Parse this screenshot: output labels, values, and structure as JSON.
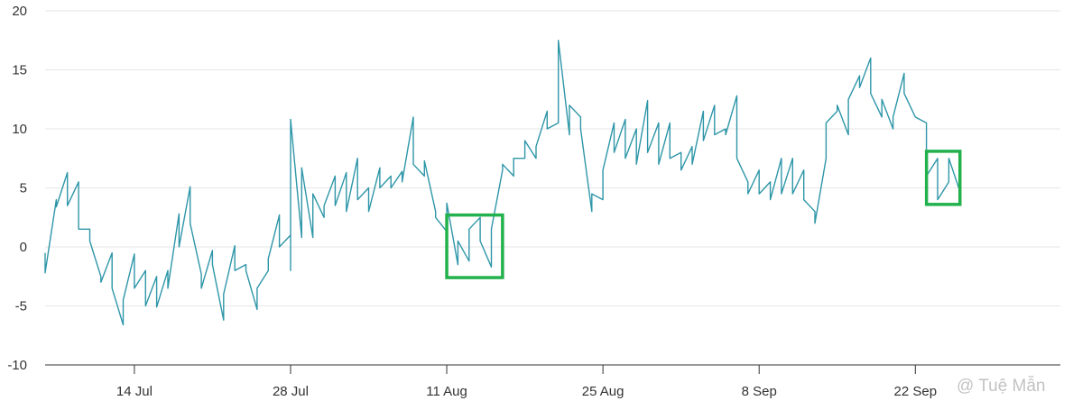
{
  "chart_data": {
    "type": "line",
    "title": "",
    "xlabel": "",
    "ylabel": "",
    "x_type": "date",
    "x_range": [
      "2024-07-06",
      "2024-10-05"
    ],
    "ylim": [
      -10,
      20
    ],
    "y_ticks": [
      {
        "value": 20,
        "label": "20"
      },
      {
        "value": 15,
        "label": "15"
      },
      {
        "value": 10,
        "label": "10"
      },
      {
        "value": 5,
        "label": "5"
      },
      {
        "value": 0,
        "label": "0"
      },
      {
        "value": -5,
        "label": "-5"
      },
      {
        "value": -10,
        "label": "-10"
      }
    ],
    "x_ticks": [
      {
        "date": "2024-07-14",
        "label": "14 Jul"
      },
      {
        "date": "2024-07-28",
        "label": "28 Jul"
      },
      {
        "date": "2024-08-11",
        "label": "11 Aug"
      },
      {
        "date": "2024-08-25",
        "label": "25 Aug"
      },
      {
        "date": "2024-09-08",
        "label": "8 Sep"
      },
      {
        "date": "2024-09-22",
        "label": "22 Sep"
      }
    ],
    "grid": true,
    "legend": "none",
    "series": [
      {
        "color": "#2e96a8",
        "points": [
          [
            "2024-07-06",
            -0.5
          ],
          [
            "2024-07-06",
            -2.2
          ],
          [
            "2024-07-07",
            4.0
          ],
          [
            "2024-07-07",
            3.4
          ],
          [
            "2024-07-08",
            6.3
          ],
          [
            "2024-07-08",
            3.5
          ],
          [
            "2024-07-09",
            5.5
          ],
          [
            "2024-07-09",
            1.5
          ],
          [
            "2024-07-10",
            1.5
          ],
          [
            "2024-07-10",
            0.5
          ],
          [
            "2024-07-11",
            -2.5
          ],
          [
            "2024-07-11",
            -3.0
          ],
          [
            "2024-07-12",
            -0.5
          ],
          [
            "2024-07-12",
            -3.5
          ],
          [
            "2024-07-13",
            -6.6
          ],
          [
            "2024-07-13",
            -4.5
          ],
          [
            "2024-07-14",
            -0.6
          ],
          [
            "2024-07-14",
            -3.5
          ],
          [
            "2024-07-15",
            -2.0
          ],
          [
            "2024-07-15",
            -5.0
          ],
          [
            "2024-07-16",
            -2.5
          ],
          [
            "2024-07-16",
            -5.1
          ],
          [
            "2024-07-17",
            -2.0
          ],
          [
            "2024-07-17",
            -3.5
          ],
          [
            "2024-07-18",
            2.8
          ],
          [
            "2024-07-18",
            0.0
          ],
          [
            "2024-07-19",
            5.1
          ],
          [
            "2024-07-19",
            2.0
          ],
          [
            "2024-07-20",
            -2.3
          ],
          [
            "2024-07-20",
            -3.5
          ],
          [
            "2024-07-21",
            -0.3
          ],
          [
            "2024-07-21",
            -1.5
          ],
          [
            "2024-07-22",
            -6.2
          ],
          [
            "2024-07-22",
            -4.0
          ],
          [
            "2024-07-23",
            0.1
          ],
          [
            "2024-07-23",
            -2.0
          ],
          [
            "2024-07-24",
            -1.5
          ],
          [
            "2024-07-24",
            -2.0
          ],
          [
            "2024-07-25",
            -5.3
          ],
          [
            "2024-07-25",
            -3.5
          ],
          [
            "2024-07-26",
            -2.0
          ],
          [
            "2024-07-26",
            -1.0
          ],
          [
            "2024-07-27",
            2.7
          ],
          [
            "2024-07-27",
            0.0
          ],
          [
            "2024-07-28",
            1.0
          ],
          [
            "2024-07-28",
            -2.0
          ],
          [
            "2024-07-28",
            10.8
          ],
          [
            "2024-07-29",
            0.8
          ],
          [
            "2024-07-29",
            6.7
          ],
          [
            "2024-07-30",
            0.8
          ],
          [
            "2024-07-30",
            4.5
          ],
          [
            "2024-07-31",
            2.5
          ],
          [
            "2024-07-31",
            3.5
          ],
          [
            "2024-08-01",
            6.0
          ],
          [
            "2024-08-01",
            3.5
          ],
          [
            "2024-08-02",
            6.3
          ],
          [
            "2024-08-02",
            3.0
          ],
          [
            "2024-08-03",
            7.5
          ],
          [
            "2024-08-03",
            4.0
          ],
          [
            "2024-08-04",
            5.0
          ],
          [
            "2024-08-04",
            3.0
          ],
          [
            "2024-08-05",
            6.7
          ],
          [
            "2024-08-05",
            5.0
          ],
          [
            "2024-08-06",
            6.0
          ],
          [
            "2024-08-06",
            5.0
          ],
          [
            "2024-08-07",
            6.4
          ],
          [
            "2024-08-07",
            5.5
          ],
          [
            "2024-08-08",
            11.0
          ],
          [
            "2024-08-08",
            7.0
          ],
          [
            "2024-08-09",
            6.0
          ],
          [
            "2024-08-09",
            7.3
          ],
          [
            "2024-08-10",
            3.0
          ],
          [
            "2024-08-10",
            3.0
          ],
          [
            "2024-08-10",
            2.5
          ],
          [
            "2024-08-11",
            1.3
          ],
          [
            "2024-08-11",
            2.7
          ],
          [
            "2024-08-11",
            3.7
          ],
          [
            "2024-08-12",
            -1.5
          ],
          [
            "2024-08-12",
            0.5
          ],
          [
            "2024-08-13",
            -1.2
          ],
          [
            "2024-08-13",
            1.5
          ],
          [
            "2024-08-14",
            2.5
          ],
          [
            "2024-08-14",
            0.5
          ],
          [
            "2024-08-15",
            -1.7
          ],
          [
            "2024-08-15",
            0.5
          ],
          [
            "2024-08-15",
            1.5
          ],
          [
            "2024-08-16",
            6.5
          ],
          [
            "2024-08-16",
            7.0
          ],
          [
            "2024-08-17",
            6.0
          ],
          [
            "2024-08-17",
            7.5
          ],
          [
            "2024-08-18",
            7.5
          ],
          [
            "2024-08-18",
            9.0
          ],
          [
            "2024-08-19",
            7.5
          ],
          [
            "2024-08-19",
            8.5
          ],
          [
            "2024-08-20",
            11.5
          ],
          [
            "2024-08-20",
            10.0
          ],
          [
            "2024-08-21",
            10.5
          ],
          [
            "2024-08-21",
            17.5
          ],
          [
            "2024-08-22",
            9.5
          ],
          [
            "2024-08-22",
            12.0
          ],
          [
            "2024-08-23",
            11.0
          ],
          [
            "2024-08-23",
            10.0
          ],
          [
            "2024-08-24",
            3.0
          ],
          [
            "2024-08-24",
            4.5
          ],
          [
            "2024-08-25",
            4.0
          ],
          [
            "2024-08-25",
            6.5
          ],
          [
            "2024-08-26",
            10.5
          ],
          [
            "2024-08-26",
            8.0
          ],
          [
            "2024-08-27",
            10.8
          ],
          [
            "2024-08-27",
            7.5
          ],
          [
            "2024-08-28",
            10.0
          ],
          [
            "2024-08-28",
            7.0
          ],
          [
            "2024-08-29",
            12.4
          ],
          [
            "2024-08-29",
            8.0
          ],
          [
            "2024-08-30",
            10.5
          ],
          [
            "2024-08-30",
            7.0
          ],
          [
            "2024-08-31",
            10.5
          ],
          [
            "2024-08-31",
            7.5
          ],
          [
            "2024-09-01",
            8.0
          ],
          [
            "2024-09-01",
            6.5
          ],
          [
            "2024-09-02",
            8.5
          ],
          [
            "2024-09-02",
            7.0
          ],
          [
            "2024-09-03",
            11.5
          ],
          [
            "2024-09-03",
            9.0
          ],
          [
            "2024-09-04",
            12.0
          ],
          [
            "2024-09-04",
            9.5
          ],
          [
            "2024-09-05",
            10.0
          ],
          [
            "2024-09-05",
            9.5
          ],
          [
            "2024-09-06",
            12.8
          ],
          [
            "2024-09-06",
            7.5
          ],
          [
            "2024-09-07",
            5.5
          ],
          [
            "2024-09-07",
            4.5
          ],
          [
            "2024-09-08",
            6.5
          ],
          [
            "2024-09-08",
            4.5
          ],
          [
            "2024-09-09",
            5.5
          ],
          [
            "2024-09-09",
            4.0
          ],
          [
            "2024-09-10",
            7.5
          ],
          [
            "2024-09-10",
            4.5
          ],
          [
            "2024-09-11",
            7.5
          ],
          [
            "2024-09-11",
            4.5
          ],
          [
            "2024-09-12",
            6.5
          ],
          [
            "2024-09-12",
            4.0
          ],
          [
            "2024-09-13",
            3.0
          ],
          [
            "2024-09-13",
            2.0
          ],
          [
            "2024-09-14",
            7.5
          ],
          [
            "2024-09-14",
            10.5
          ],
          [
            "2024-09-15",
            11.5
          ],
          [
            "2024-09-15",
            12.0
          ],
          [
            "2024-09-16",
            9.5
          ],
          [
            "2024-09-16",
            12.5
          ],
          [
            "2024-09-17",
            14.5
          ],
          [
            "2024-09-17",
            13.5
          ],
          [
            "2024-09-18",
            16.0
          ],
          [
            "2024-09-18",
            13.0
          ],
          [
            "2024-09-19",
            11.0
          ],
          [
            "2024-09-19",
            12.5
          ],
          [
            "2024-09-20",
            10.0
          ],
          [
            "2024-09-20",
            11.0
          ],
          [
            "2024-09-21",
            14.7
          ],
          [
            "2024-09-21",
            13.0
          ],
          [
            "2024-09-22",
            11.0
          ],
          [
            "2024-09-22",
            11.0
          ],
          [
            "2024-09-23",
            10.5
          ],
          [
            "2024-09-23",
            8.0
          ],
          [
            "2024-09-23",
            6.0
          ],
          [
            "2024-09-24",
            7.5
          ],
          [
            "2024-09-24",
            4.0
          ],
          [
            "2024-09-25",
            5.5
          ],
          [
            "2024-09-25",
            7.5
          ],
          [
            "2024-09-26",
            4.7
          ]
        ]
      }
    ],
    "annotations": [
      {
        "type": "highlight-box",
        "color": "#22b14c",
        "x_range": [
          "2024-08-11",
          "2024-08-16"
        ],
        "y_range": [
          -2.6,
          2.7
        ]
      },
      {
        "type": "highlight-box",
        "color": "#22b14c",
        "x_range": [
          "2024-09-23",
          "2024-09-26"
        ],
        "y_range": [
          3.6,
          8.1
        ]
      }
    ]
  },
  "watermark": {
    "text": "@ Tuệ Mẫn"
  }
}
